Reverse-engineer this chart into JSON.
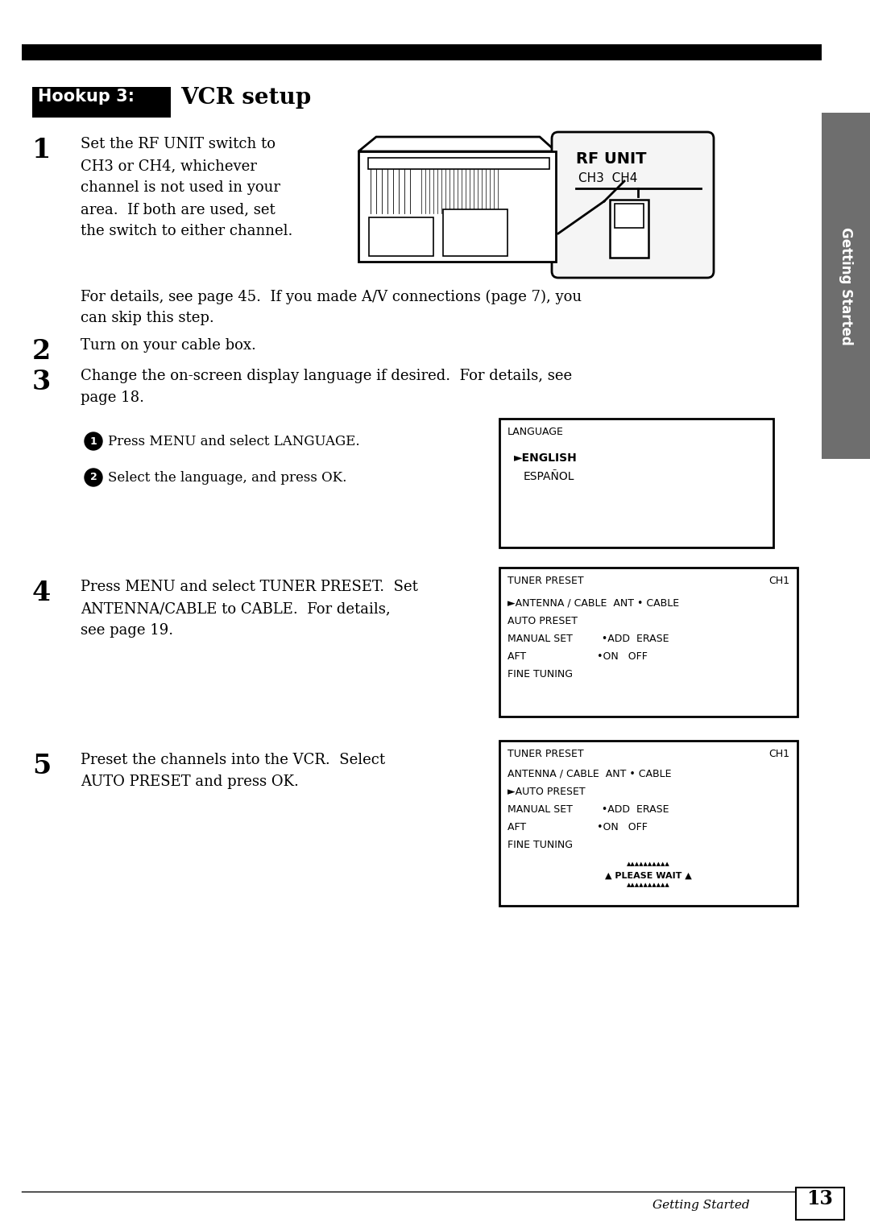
{
  "page_bg": "#ffffff",
  "hookup_text": "Hookup 3:",
  "title_text": "VCR setup",
  "side_tab_color": "#6e6e6e",
  "side_tab_text": "Getting Started",
  "step1_num": "1",
  "step1_lines": [
    "Set the RF UNIT switch to",
    "CH3 or CH4, whichever",
    "channel is not used in your",
    "area.  If both are used, set",
    "the switch to either channel."
  ],
  "step1_note_line1": "For details, see page 45.  If you made A/V connections (page 7), you",
  "step1_note_line2": "can skip this step.",
  "step2_num": "2",
  "step2_text": "Turn on your cable box.",
  "step3_num": "3",
  "step3_line1": "Change the on-screen display language if desired.  For details, see",
  "step3_line2": "page 18.",
  "sub1_text": "Press MENU and select LANGUAGE.",
  "sub2_text": "Select the language, and press OK.",
  "lang_box_title": "LANGUAGE",
  "lang_box_line1": "►ENGLISH",
  "lang_box_line2": "ESPAÑOL",
  "step4_num": "4",
  "step4_line1": "Press MENU and select TUNER PRESET.  Set",
  "step4_line2": "ANTENNA/CABLE to CABLE.  For details,",
  "step4_line3": "see page 19.",
  "tp1_title": "TUNER PRESET",
  "tp1_ch": "CH1",
  "tp1_lines": [
    "►ANTENNA / CABLE  ANT • CABLE",
    "AUTO PRESET",
    "MANUAL SET         •ADD  ERASE",
    "AFT                      •ON   OFF",
    "FINE TUNING"
  ],
  "step5_num": "5",
  "step5_line1": "Preset the channels into the VCR.  Select",
  "step5_line2": "AUTO PRESET and press OK.",
  "tp2_title": "TUNER PRESET",
  "tp2_ch": "CH1",
  "tp2_lines": [
    "ANTENNA / CABLE  ANT • CABLE",
    "►AUTO PRESET",
    "MANUAL SET         •ADD  ERASE",
    "AFT                      •ON   OFF",
    "FINE TUNING"
  ],
  "please_wait": "PLEASE WAIT",
  "footer_text": "Getting Started",
  "footer_page": "13",
  "rf_unit_label": "RF UNIT",
  "rf_ch_label": "CH3  CH4"
}
